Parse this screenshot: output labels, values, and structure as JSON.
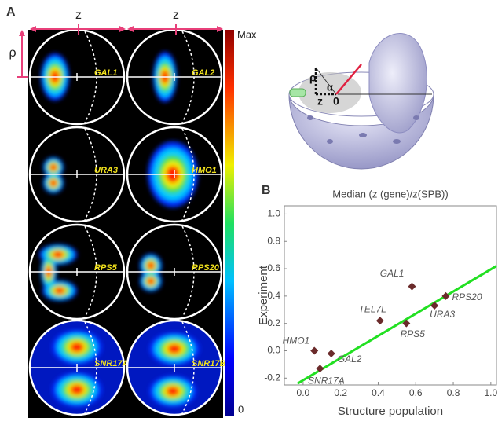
{
  "panel_a": {
    "label": "A",
    "z_labels": [
      "z",
      "z"
    ],
    "rho": "ρ",
    "genes": [
      "GAL1",
      "GAL2",
      "URA3",
      "HMO1",
      "RPS5",
      "RPS20",
      "SNR17A",
      "SNR17B"
    ],
    "colorbar": {
      "max": "Max",
      "min": "0"
    }
  },
  "schematic": {
    "rho": "ρ",
    "alpha": "α",
    "z": "z",
    "origin": "0"
  },
  "chart_data": {
    "type": "scatter",
    "panel_label": "B",
    "title": "Median (z (gene)/z(SPB))",
    "xlabel": "Structure population",
    "ylabel": "Experiment",
    "point_labels": [
      "GAL1",
      "RPS20",
      "URA3",
      "TEL7L",
      "RPS5",
      "HMO1",
      "GAL2",
      "SNR17A"
    ],
    "x": [
      0.58,
      0.76,
      0.7,
      0.41,
      0.55,
      0.06,
      0.15,
      0.09
    ],
    "values": [
      0.47,
      0.4,
      0.33,
      0.22,
      0.2,
      0.0,
      -0.02,
      -0.13
    ],
    "color": "#6b2b2b",
    "fit_line": {
      "x": [
        -0.03,
        1.03
      ],
      "y": [
        -0.24,
        0.62
      ],
      "color": "#22e022"
    },
    "xlim": [
      -0.1,
      1.03
    ],
    "ylim": [
      -0.25,
      1.06
    ],
    "xticks": [
      {
        "value": 0,
        "label": "0.0"
      },
      0.2,
      0.4,
      0.6,
      0.8,
      {
        "value": 1,
        "label": "1.0"
      }
    ],
    "yticks": [
      -0.2,
      {
        "value": 0,
        "label": "0.0"
      },
      0.2,
      0.4,
      0.6,
      0.8,
      {
        "value": 1,
        "label": "1.0"
      }
    ]
  }
}
